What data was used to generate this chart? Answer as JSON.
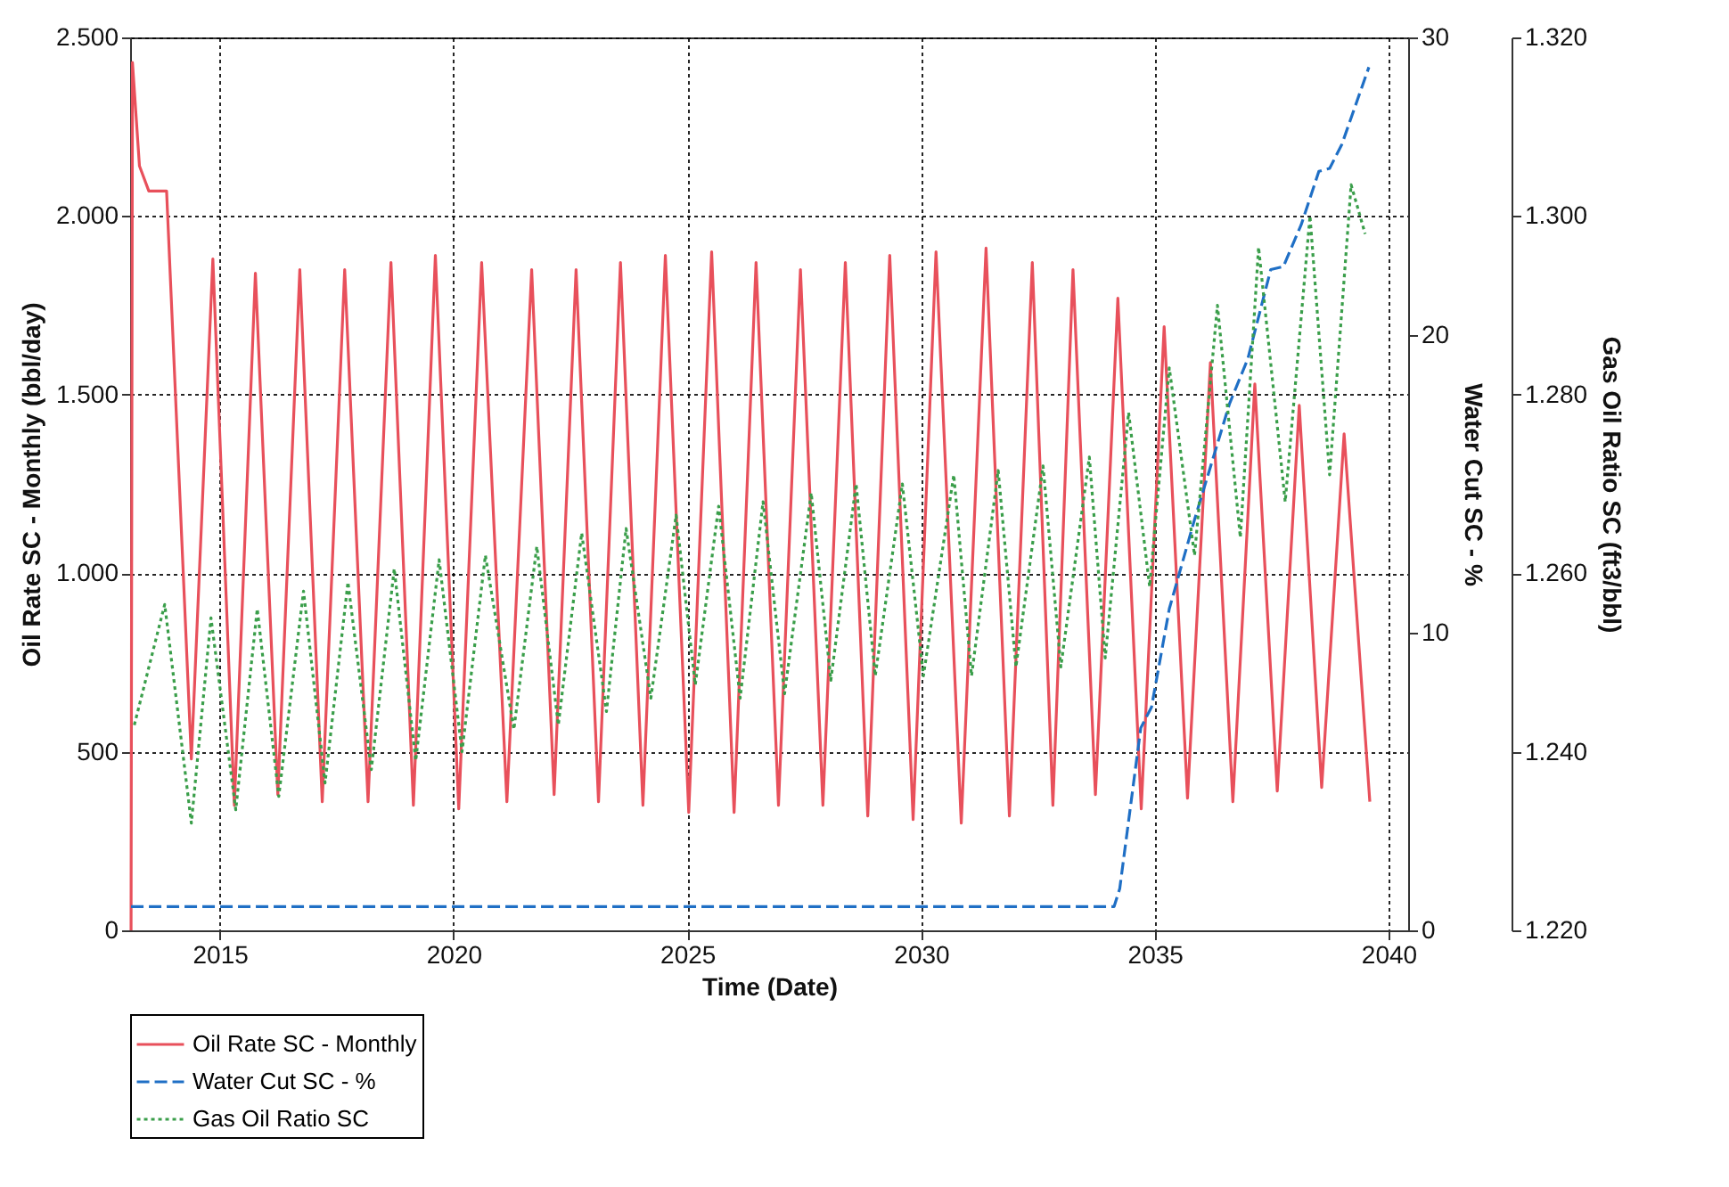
{
  "chart_data": {
    "type": "line",
    "xlabel": "Time (Date)",
    "ylabel": "Oil Rate SC - Monthly (bbl/day)",
    "y2label": "Water Cut SC - %",
    "y3label": "Gas Oil Ratio SC (ft3/bbl)",
    "xlim": [
      2013.08,
      2040.42
    ],
    "xticks": [
      2015,
      2020,
      2025,
      2030,
      2035,
      2040
    ],
    "ylim": [
      0,
      2500
    ],
    "yticks": [
      0,
      {
        "value": 500,
        "label": "500"
      },
      {
        "value": 1000,
        "label": "1.000"
      },
      {
        "value": 1500,
        "label": "1.500"
      },
      {
        "value": 2000,
        "label": "2.000"
      },
      {
        "value": 2500,
        "label": "2.500"
      }
    ],
    "y2lim": [
      0,
      30
    ],
    "y2ticks": [
      0,
      10,
      20,
      30
    ],
    "y3lim": [
      1220,
      1320
    ],
    "y3ticks": [
      {
        "value": 1220,
        "label": "1.220"
      },
      {
        "value": 1240,
        "label": "1.240"
      },
      {
        "value": 1260,
        "label": "1.260"
      },
      {
        "value": 1280,
        "label": "1.280"
      },
      {
        "value": 1300,
        "label": "1.300"
      },
      {
        "value": 1320,
        "label": "1.320"
      }
    ],
    "grid": true,
    "legend": "bottom",
    "series": [
      {
        "name": "Oil Rate SC - Monthly",
        "color": "#e8505b",
        "line_style": "solid",
        "x": [
          2013.1,
          2013.13,
          2013.28,
          2013.48,
          2013.86,
          2014.39,
          2014.85,
          2015.31,
          2015.76,
          2016.24,
          2016.71,
          2017.19,
          2017.67,
          2018.17,
          2018.66,
          2019.14,
          2019.61,
          2020.11,
          2020.6,
          2021.14,
          2021.67,
          2022.15,
          2022.62,
          2023.1,
          2023.57,
          2024.05,
          2024.53,
          2025.03,
          2025.52,
          2026.0,
          2026.47,
          2026.95,
          2027.42,
          2027.9,
          2028.38,
          2028.86,
          2029.33,
          2029.83,
          2030.32,
          2030.86,
          2031.39,
          2031.89,
          2032.38,
          2032.82,
          2033.25,
          2033.73,
          2034.21,
          2034.71,
          2035.2,
          2035.7,
          2036.19,
          2036.67,
          2037.14,
          2037.62,
          2038.09,
          2038.57,
          2039.05,
          2039.6
        ],
        "values": [
          0,
          2430,
          2140,
          2070,
          2070,
          480,
          1880,
          350,
          1840,
          380,
          1850,
          360,
          1850,
          360,
          1870,
          350,
          1890,
          340,
          1870,
          360,
          1850,
          380,
          1850,
          360,
          1870,
          350,
          1890,
          330,
          1900,
          330,
          1870,
          350,
          1850,
          350,
          1870,
          320,
          1890,
          310,
          1900,
          300,
          1910,
          320,
          1870,
          350,
          1850,
          380,
          1770,
          340,
          1690,
          370,
          1590,
          360,
          1530,
          390,
          1470,
          400,
          1390,
          360
        ]
      },
      {
        "name": "Water Cut SC - %",
        "color": "#1f6fc5",
        "line_style": "dashed",
        "axis": "y2",
        "x": [
          2013.1,
          2034.13,
          2034.25,
          2034.7,
          2034.93,
          2035.31,
          2035.85,
          2036.6,
          2036.99,
          2037.48,
          2037.75,
          2038.13,
          2038.51,
          2038.74,
          2039.0,
          2039.58
        ],
        "values": [
          0.8,
          0.8,
          1.4,
          6.8,
          7.5,
          10.8,
          13.8,
          17.7,
          19.2,
          22.2,
          22.3,
          23.7,
          25.5,
          25.6,
          26.4,
          29.0
        ]
      },
      {
        "name": "Gas Oil Ratio SC",
        "color": "#3a9e4a",
        "line_style": "dotted",
        "axis": "y3",
        "x": [
          2013.17,
          2013.82,
          2014.39,
          2014.81,
          2015.34,
          2015.8,
          2016.26,
          2016.79,
          2017.25,
          2017.74,
          2018.24,
          2018.73,
          2019.19,
          2019.69,
          2020.18,
          2020.68,
          2021.29,
          2021.78,
          2022.24,
          2022.74,
          2023.27,
          2023.69,
          2024.22,
          2024.76,
          2025.17,
          2025.67,
          2026.13,
          2026.62,
          2027.08,
          2027.65,
          2028.07,
          2028.61,
          2029.02,
          2029.6,
          2030.05,
          2030.7,
          2031.08,
          2031.65,
          2032.03,
          2032.61,
          2032.99,
          2033.6,
          2033.94,
          2034.44,
          2034.89,
          2035.31,
          2035.85,
          2036.34,
          2036.83,
          2037.22,
          2037.79,
          2038.32,
          2038.74,
          2039.2,
          2039.5
        ],
        "values": [
          1243,
          1256.5,
          1232,
          1255,
          1233.5,
          1256,
          1235,
          1258,
          1236.5,
          1259,
          1238,
          1260.5,
          1239,
          1261.5,
          1240,
          1262,
          1242.5,
          1263,
          1243,
          1264.5,
          1244.5,
          1265,
          1246,
          1266.5,
          1247.5,
          1267.5,
          1246,
          1268,
          1246.5,
          1269,
          1248,
          1270,
          1248.5,
          1270,
          1248.5,
          1271,
          1248.5,
          1271.5,
          1249.5,
          1272,
          1249.5,
          1273,
          1250.5,
          1278,
          1258.5,
          1283,
          1262,
          1290,
          1264,
          1296.5,
          1268,
          1300,
          1271,
          1303.5,
          1298
        ]
      }
    ]
  }
}
